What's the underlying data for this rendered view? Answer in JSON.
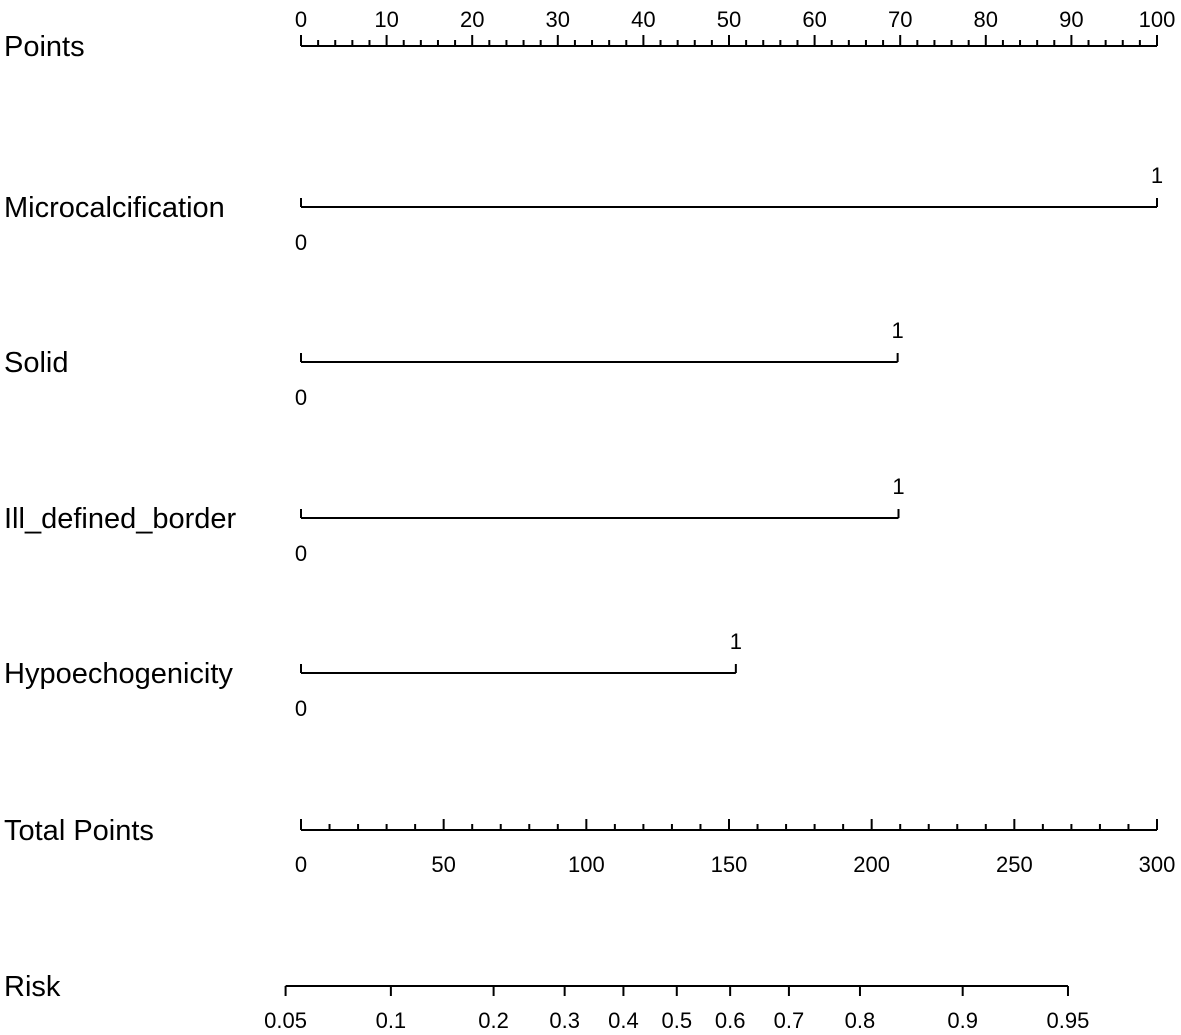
{
  "chart_data": {
    "type": "nomogram",
    "rows": [
      {
        "kind": "scale",
        "label": "Points",
        "ticks": [
          "0",
          "10",
          "20",
          "30",
          "40",
          "50",
          "60",
          "70",
          "80",
          "90",
          "100"
        ],
        "tick_values": [
          0,
          10,
          20,
          30,
          40,
          50,
          60,
          70,
          80,
          90,
          100
        ],
        "range": [
          0,
          100
        ],
        "minor_step": 2,
        "labels_position": "above"
      },
      {
        "kind": "variable",
        "label": "Microcalcification",
        "levels": [
          {
            "label": "0",
            "points": 0
          },
          {
            "label": "1",
            "points": 100
          }
        ]
      },
      {
        "kind": "variable",
        "label": "Solid",
        "levels": [
          {
            "label": "0",
            "points": 0
          },
          {
            "label": "1",
            "points": 69.7
          }
        ]
      },
      {
        "kind": "variable",
        "label": "Ill_defined_border",
        "levels": [
          {
            "label": "0",
            "points": 0
          },
          {
            "label": "1",
            "points": 69.8
          }
        ]
      },
      {
        "kind": "variable",
        "label": "Hypoechogenicity",
        "levels": [
          {
            "label": "0",
            "points": 0
          },
          {
            "label": "1",
            "points": 50.8
          }
        ]
      },
      {
        "kind": "scale",
        "label": "Total Points",
        "ticks": [
          "0",
          "50",
          "100",
          "150",
          "200",
          "250",
          "300"
        ],
        "tick_values": [
          0,
          50,
          100,
          150,
          200,
          250,
          300
        ],
        "range": [
          0,
          300
        ],
        "minor_step": 10,
        "labels_position": "below"
      },
      {
        "kind": "risk",
        "label": "Risk",
        "ticks": [
          "0.05",
          "0.1",
          "0.2",
          "0.3",
          "0.4",
          "0.5",
          "0.6",
          "0.7",
          "0.8",
          "0.9",
          "0.95"
        ],
        "tick_values": [
          0.05,
          0.1,
          0.2,
          0.3,
          0.4,
          0.5,
          0.6,
          0.7,
          0.8,
          0.9,
          0.95
        ],
        "total_points_at_tick": [
          -5.4,
          31.5,
          67.5,
          92.4,
          113.0,
          131.7,
          150.4,
          171.0,
          195.9,
          231.9,
          268.8
        ],
        "labels_position": "below"
      }
    ]
  }
}
